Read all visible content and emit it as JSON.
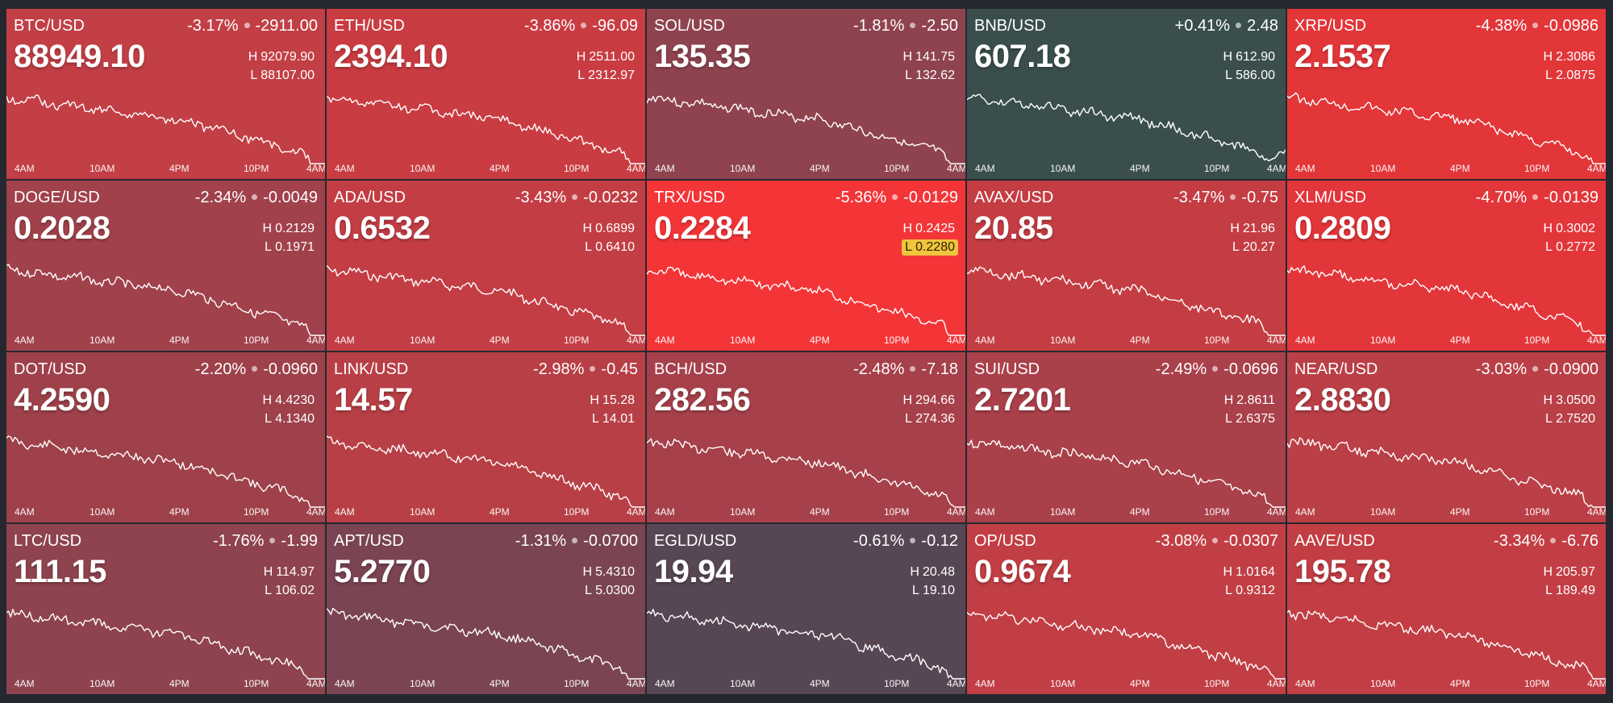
{
  "time_axis": [
    "4AM",
    "10AM",
    "4PM",
    "10PM",
    "4AM"
  ],
  "tiles": [
    {
      "symbol": "BTC/USD",
      "change_pct": "-3.17%",
      "change_abs": "-2911.00",
      "price": "88949.10",
      "high": "92079.90",
      "low": "88107.00",
      "bg_color": "#c23f45",
      "low_hit": false
    },
    {
      "symbol": "ETH/USD",
      "change_pct": "-3.86%",
      "change_abs": "-96.09",
      "price": "2394.10",
      "high": "2511.00",
      "low": "2312.97",
      "bg_color": "#c93c42",
      "low_hit": false
    },
    {
      "symbol": "SOL/USD",
      "change_pct": "-1.81%",
      "change_abs": "-2.50",
      "price": "135.35",
      "high": "141.75",
      "low": "132.62",
      "bg_color": "#8f434f",
      "low_hit": false
    },
    {
      "symbol": "BNB/USD",
      "change_pct": "+0.41%",
      "change_abs": "2.48",
      "price": "607.18",
      "high": "612.90",
      "low": "586.00",
      "bg_color": "#3a4f4c",
      "low_hit": false
    },
    {
      "symbol": "XRP/USD",
      "change_pct": "-4.38%",
      "change_abs": "-0.0986",
      "price": "2.1537",
      "high": "2.3086",
      "low": "2.0875",
      "bg_color": "#e23639",
      "low_hit": false
    },
    {
      "symbol": "DOGE/USD",
      "change_pct": "-2.34%",
      "change_abs": "-0.0049",
      "price": "0.2028",
      "high": "0.2129",
      "low": "0.1971",
      "bg_color": "#a1414b",
      "low_hit": false
    },
    {
      "symbol": "ADA/USD",
      "change_pct": "-3.43%",
      "change_abs": "-0.0232",
      "price": "0.6532",
      "high": "0.6899",
      "low": "0.6410",
      "bg_color": "#c33d44",
      "low_hit": false
    },
    {
      "symbol": "TRX/USD",
      "change_pct": "-5.36%",
      "change_abs": "-0.0129",
      "price": "0.2284",
      "high": "0.2425",
      "low": "0.2280",
      "bg_color": "#f33538",
      "low_hit": true
    },
    {
      "symbol": "AVAX/USD",
      "change_pct": "-3.47%",
      "change_abs": "-0.75",
      "price": "20.85",
      "high": "21.96",
      "low": "20.27",
      "bg_color": "#c43d43",
      "low_hit": false
    },
    {
      "symbol": "XLM/USD",
      "change_pct": "-4.70%",
      "change_abs": "-0.0139",
      "price": "0.2809",
      "high": "0.3002",
      "low": "0.2772",
      "bg_color": "#e3363a",
      "low_hit": false
    },
    {
      "symbol": "DOT/USD",
      "change_pct": "-2.20%",
      "change_abs": "-0.0960",
      "price": "4.2590",
      "high": "4.4230",
      "low": "4.1340",
      "bg_color": "#9e414a",
      "low_hit": false
    },
    {
      "symbol": "LINK/USD",
      "change_pct": "-2.98%",
      "change_abs": "-0.45",
      "price": "14.57",
      "high": "15.28",
      "low": "14.01",
      "bg_color": "#b83f46",
      "low_hit": false
    },
    {
      "symbol": "BCH/USD",
      "change_pct": "-2.48%",
      "change_abs": "-7.18",
      "price": "282.56",
      "high": "294.66",
      "low": "274.36",
      "bg_color": "#a6404a",
      "low_hit": false
    },
    {
      "symbol": "SUI/USD",
      "change_pct": "-2.49%",
      "change_abs": "-0.0696",
      "price": "2.7201",
      "high": "2.8611",
      "low": "2.6375",
      "bg_color": "#a9404a",
      "low_hit": false
    },
    {
      "symbol": "NEAR/USD",
      "change_pct": "-3.03%",
      "change_abs": "-0.0900",
      "price": "2.8830",
      "high": "3.0500",
      "low": "2.7520",
      "bg_color": "#ba3f46",
      "low_hit": false
    },
    {
      "symbol": "LTC/USD",
      "change_pct": "-1.76%",
      "change_abs": "-1.99",
      "price": "111.15",
      "high": "114.97",
      "low": "106.02",
      "bg_color": "#8e434e",
      "low_hit": false
    },
    {
      "symbol": "APT/USD",
      "change_pct": "-1.31%",
      "change_abs": "-0.0700",
      "price": "5.2770",
      "high": "5.4310",
      "low": "5.0300",
      "bg_color": "#7a4452",
      "low_hit": false
    },
    {
      "symbol": "EGLD/USD",
      "change_pct": "-0.61%",
      "change_abs": "-0.12",
      "price": "19.94",
      "high": "20.48",
      "low": "19.10",
      "bg_color": "#574654",
      "low_hit": false
    },
    {
      "symbol": "OP/USD",
      "change_pct": "-3.08%",
      "change_abs": "-0.0307",
      "price": "0.9674",
      "high": "1.0164",
      "low": "0.9312",
      "bg_color": "#c13e44",
      "low_hit": false
    },
    {
      "symbol": "AAVE/USD",
      "change_pct": "-3.34%",
      "change_abs": "-6.76",
      "price": "195.78",
      "high": "205.97",
      "low": "189.49",
      "bg_color": "#c23e44",
      "low_hit": false
    }
  ]
}
